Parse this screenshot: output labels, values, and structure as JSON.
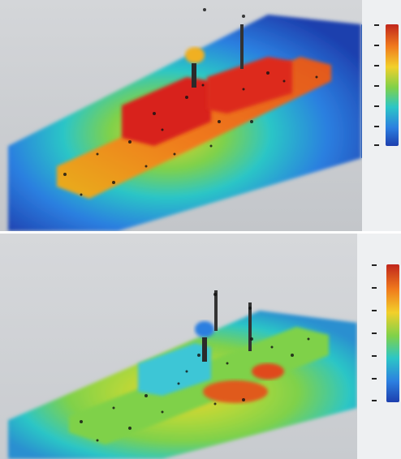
{
  "colors": {
    "background_top": "#c9cbcf",
    "background_bottom": "#cfd1d4",
    "colormap": [
      "#c0261c",
      "#f07a1d",
      "#f2d02b",
      "#7fd14a",
      "#2cc6c6",
      "#2c7fe0",
      "#1d3fae"
    ]
  },
  "panels": [
    {
      "name": "top",
      "colormap_legend": true
    },
    {
      "name": "bottom",
      "colormap_legend": true
    }
  ]
}
